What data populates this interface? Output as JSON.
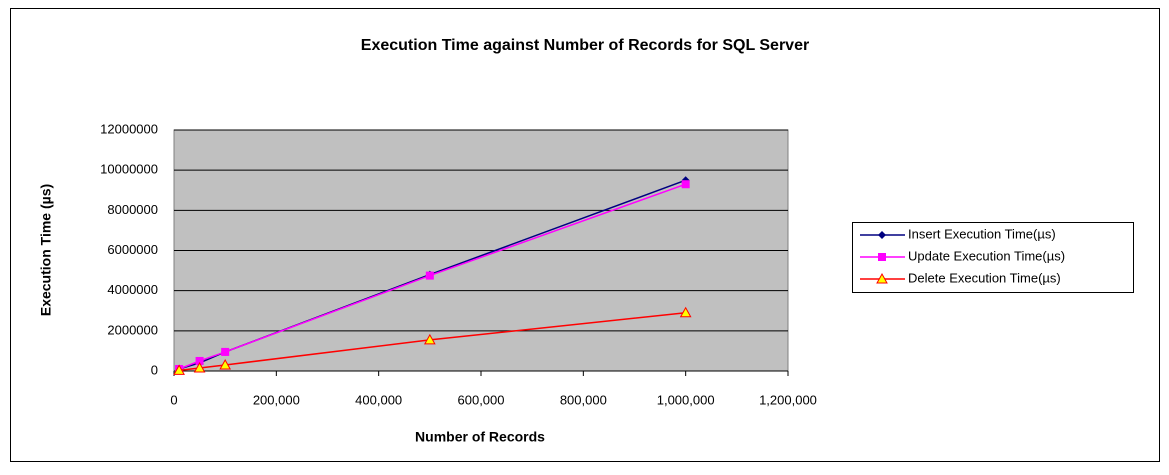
{
  "chart_data": {
    "type": "line",
    "title": "Execution Time against Number of Records for SQL Server",
    "x_label": "Number of Records",
    "y_label": "Execution Time (µs)",
    "x": [
      10000,
      50000,
      100000,
      500000,
      1000000
    ],
    "series": [
      {
        "name": "Insert Execution Time(µs)",
        "color": "#000080",
        "marker": "diamond",
        "values": [
          100000,
          400000,
          950000,
          4800000,
          9500000
        ]
      },
      {
        "name": "Update Execution Time(µs)",
        "color": "#ff00ff",
        "marker": "square",
        "values": [
          100000,
          500000,
          950000,
          4750000,
          9300000
        ]
      },
      {
        "name": "Delete Execution Time(µs)",
        "color": "#ff0000",
        "marker": "triangle",
        "values": [
          30000,
          150000,
          300000,
          1550000,
          2900000
        ]
      }
    ],
    "xlim": [
      0,
      1200000
    ],
    "xticks": [
      0,
      {
        "value": 200000,
        "label": "200,000"
      },
      {
        "value": 400000,
        "label": "400,000"
      },
      {
        "value": 600000,
        "label": "600,000"
      },
      {
        "value": 800000,
        "label": "800,000"
      },
      {
        "value": 1000000,
        "label": "1,000,000"
      },
      {
        "value": 1200000,
        "label": "1,200,000"
      }
    ],
    "ylim": [
      0,
      12000000
    ],
    "yticks": [
      0,
      2000000,
      4000000,
      6000000,
      8000000,
      10000000,
      12000000
    ],
    "grid": true,
    "legend": "right"
  }
}
